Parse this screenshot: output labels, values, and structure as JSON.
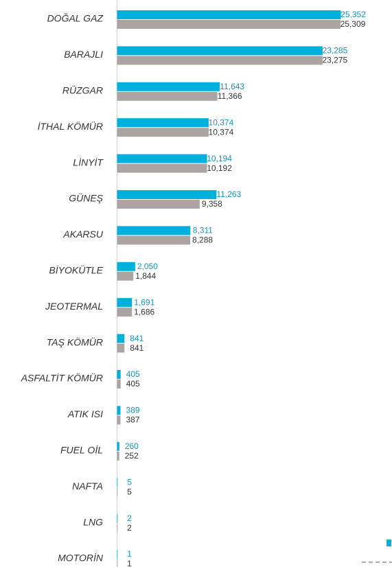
{
  "chart_data": {
    "type": "hbar",
    "categories": [
      "DOĞAL GAZ",
      "BARAJLI",
      "RÜZGAR",
      "İTHAL KÖMÜR",
      "LİNYİT",
      "GÜNEŞ",
      "AKARSU",
      "BİYOKÜTLE",
      "JEOTERMAL",
      "TAŞ KÖMÜR",
      "ASFALTİT KÖMÜR",
      "ATIK ISI",
      "FUEL OİL",
      "NAFTA",
      "LNG",
      "MOTORİN"
    ],
    "series": [
      {
        "color": "#00b0dc",
        "values": [
          25352,
          23285,
          11643,
          10374,
          10194,
          11263,
          8311,
          2050,
          1691,
          841,
          405,
          389,
          260,
          5,
          2,
          1
        ],
        "value_labels": [
          "25,352",
          "23,285",
          "11,643",
          "10,374",
          "10,194",
          "11,263",
          "8,311",
          "2,050",
          "1,691",
          "841",
          "405",
          "389",
          "260",
          "5",
          "2",
          "1"
        ]
      },
      {
        "color": "#aba4a3",
        "values": [
          25309,
          23275,
          11366,
          10374,
          10192,
          9358,
          8288,
          1844,
          1686,
          841,
          405,
          387,
          252,
          5,
          2,
          1
        ],
        "value_labels": [
          "25,309",
          "23,275",
          "11,366",
          "10,374",
          "10,192",
          "9,358",
          "8,288",
          "1,844",
          "1,686",
          "841",
          "405",
          "387",
          "252",
          "5",
          "2",
          "1"
        ]
      }
    ]
  }
}
